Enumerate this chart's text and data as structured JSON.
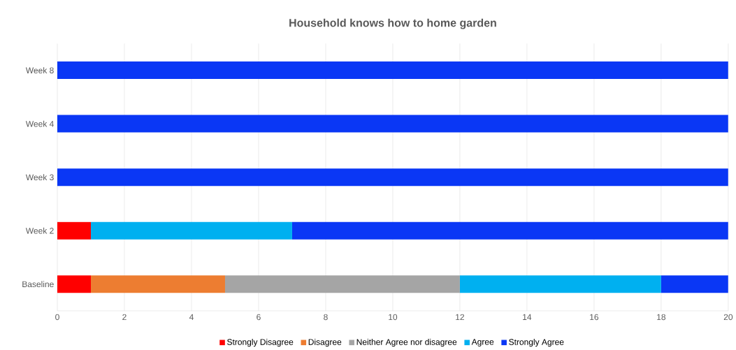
{
  "chart_data": {
    "type": "bar",
    "title": "Household knows how to home garden",
    "orientation": "horizontal",
    "stacked": true,
    "categories": [
      "Week 8",
      "Week 4",
      "Week 3",
      "Week 2",
      "Baseline"
    ],
    "series": [
      {
        "name": "Strongly Disagree",
        "color": "#ff0000",
        "values": [
          0,
          0,
          0,
          1,
          1
        ]
      },
      {
        "name": "Disagree",
        "color": "#ed7d31",
        "values": [
          0,
          0,
          0,
          0,
          4
        ]
      },
      {
        "name": "Neither Agree nor disagree",
        "color": "#a5a5a5",
        "values": [
          0,
          0,
          0,
          0,
          7
        ]
      },
      {
        "name": "Agree",
        "color": "#00b0f0",
        "values": [
          0,
          0,
          0,
          6,
          6
        ]
      },
      {
        "name": "Strongly Agree",
        "color": "#0a37f5",
        "values": [
          20,
          20,
          20,
          13,
          2
        ]
      }
    ],
    "xlim": [
      0,
      20
    ],
    "xticks": [
      0,
      2,
      4,
      6,
      8,
      10,
      12,
      14,
      16,
      18,
      20
    ],
    "grid": "x",
    "legend": "bottom"
  }
}
